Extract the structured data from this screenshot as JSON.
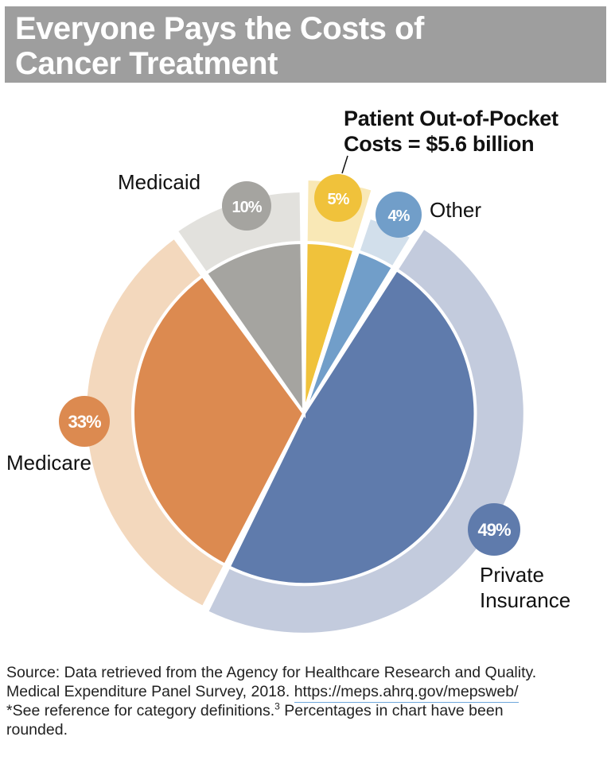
{
  "title": {
    "line1": "Everyone Pays the Costs of",
    "line2": "Cancer Treatment"
  },
  "colors": {
    "title_bg": "#9e9e9e",
    "private_insurance": "#5f7bac",
    "private_insurance_light": "#c3cbdd",
    "medicare": "#dc8a50",
    "medicare_light": "#f3d8bd",
    "medicaid": "#a5a4a0",
    "medicaid_light": "#e2e1dd",
    "patient": "#f0c23b",
    "patient_light": "#f9e8b6",
    "other": "#719ec9",
    "other_light": "#d2dfeb"
  },
  "chart_data": {
    "type": "pie",
    "slices": [
      {
        "label": "Patient Out-of-Pocket Costs = $5.6 billion",
        "value": 5,
        "value_label": "5%",
        "color": "#f0c23b",
        "light": "#f9e8b6"
      },
      {
        "label": "Other",
        "value": 4,
        "value_label": "4%",
        "color": "#719ec9",
        "light": "#d2dfeb"
      },
      {
        "label": "Private Insurance",
        "value": 49,
        "value_label": "49%",
        "color": "#5f7bac",
        "light": "#c3cbdd"
      },
      {
        "label": "Medicare",
        "value": 33,
        "value_label": "33%",
        "color": "#dc8a50",
        "light": "#f3d8bd"
      },
      {
        "label": "Medicaid",
        "value": 10,
        "value_label": "10%",
        "color": "#a5a4a0",
        "light": "#e2e1dd"
      }
    ],
    "callout": {
      "line1": "Patient Out-of-Pocket",
      "line2": "Costs = $5.6 billion"
    },
    "labels": {
      "medicaid": "Medicaid",
      "other": "Other",
      "medicare": "Medicare",
      "private_line1": "Private",
      "private_line2": "Insurance"
    }
  },
  "source": {
    "line1": "Source: Data retrieved from the Agency for Healthcare Research and Quality.",
    "line2_text": "Medical Expenditure Panel Survey, 2018. ",
    "link": "https://meps.ahrq.gov/mepsweb/",
    "line3_text": "*See reference for category definitions.",
    "footnote_mark": "3",
    "line3_rest": " Percentages in chart have been",
    "line4": "rounded."
  }
}
